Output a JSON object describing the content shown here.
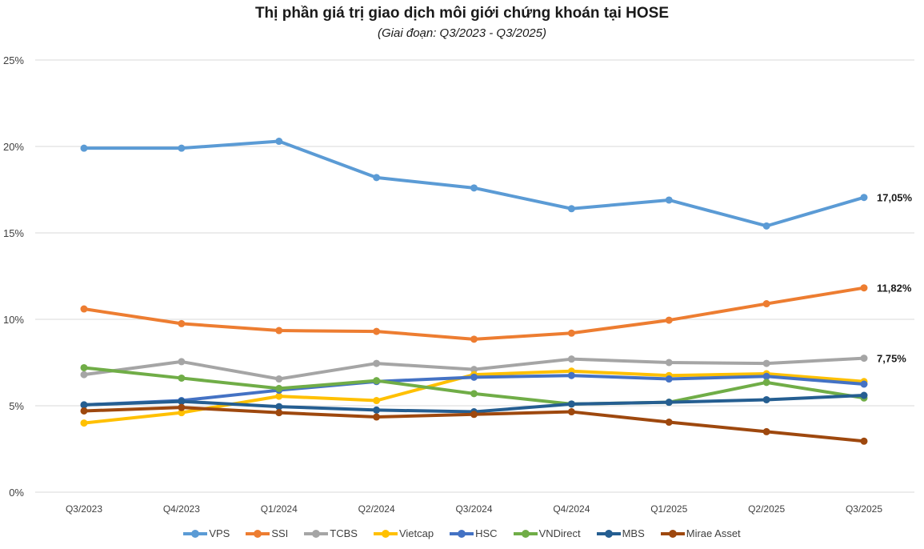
{
  "chart_data": {
    "type": "line",
    "title": "Thị phần giá trị giao dịch môi giới chứng khoán tại HOSE",
    "subtitle": "(Giai đoạn: Q3/2023 - Q3/2025)",
    "xlabel": "",
    "ylabel": "",
    "ylim": [
      0,
      25
    ],
    "yticks": [
      0,
      5,
      10,
      15,
      20,
      25
    ],
    "ytick_labels": [
      "0%",
      "5%",
      "10%",
      "15%",
      "20%",
      "25%"
    ],
    "grid": true,
    "legend_position": "bottom",
    "categories": [
      "Q3/2023",
      "Q4/2023",
      "Q1/2024",
      "Q2/2024",
      "Q3/2024",
      "Q4/2024",
      "Q1/2025",
      "Q2/2025",
      "Q3/2025"
    ],
    "series": [
      {
        "name": "VPS",
        "color": "#5B9BD5",
        "values": [
          19.9,
          19.9,
          20.3,
          18.2,
          17.6,
          16.4,
          16.9,
          15.4,
          17.05
        ],
        "end_label": "17,05%"
      },
      {
        "name": "SSI",
        "color": "#ED7D31",
        "values": [
          10.6,
          9.75,
          9.35,
          9.3,
          8.85,
          9.2,
          9.95,
          10.9,
          11.82
        ],
        "end_label": "11,82%"
      },
      {
        "name": "TCBS",
        "color": "#A5A5A5",
        "values": [
          6.8,
          7.55,
          6.55,
          7.45,
          7.1,
          7.7,
          7.5,
          7.45,
          7.75
        ],
        "end_label": "7,75%"
      },
      {
        "name": "Vietcap",
        "color": "#FFC000",
        "values": [
          4.0,
          4.6,
          5.55,
          5.3,
          6.8,
          7.0,
          6.75,
          6.85,
          6.4
        ],
        "end_label": ""
      },
      {
        "name": "HSC",
        "color": "#4472C4",
        "values": [
          5.05,
          5.3,
          5.9,
          6.4,
          6.65,
          6.75,
          6.55,
          6.7,
          6.25
        ],
        "end_label": ""
      },
      {
        "name": "VNDirect",
        "color": "#70AD47",
        "values": [
          7.2,
          6.6,
          6.0,
          6.45,
          5.7,
          5.1,
          5.2,
          6.35,
          5.45
        ],
        "end_label": ""
      },
      {
        "name": "MBS",
        "color": "#255E91",
        "values": [
          5.05,
          5.25,
          4.95,
          4.75,
          4.65,
          5.1,
          5.2,
          5.35,
          5.6
        ],
        "end_label": ""
      },
      {
        "name": "Mirae Asset",
        "color": "#9E480E",
        "values": [
          4.7,
          4.9,
          4.6,
          4.35,
          4.5,
          4.65,
          4.05,
          3.5,
          2.95
        ],
        "end_label": ""
      }
    ]
  }
}
